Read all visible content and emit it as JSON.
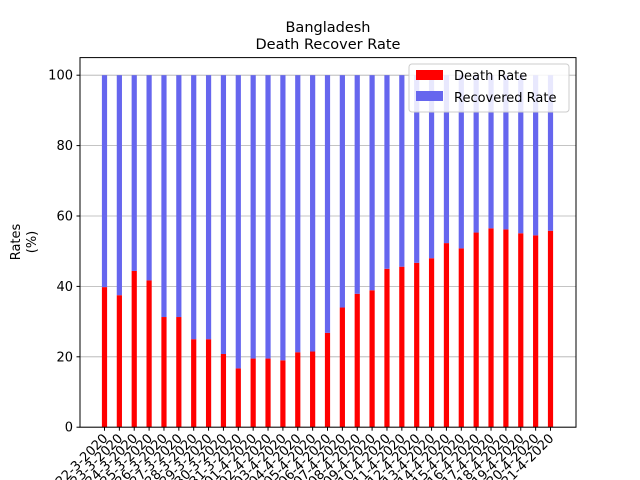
{
  "chart_data": {
    "type": "bar",
    "stacked": true,
    "title": "Bangladesh",
    "subtitle": "Death Recover Rate",
    "xlabel": "",
    "ylabel": "Rates",
    "ylabel_unit": "(%)",
    "ylim": [
      0,
      105
    ],
    "yticks": [
      0,
      20,
      40,
      60,
      80,
      100
    ],
    "grid": "y",
    "legend": "top-right",
    "categories": [
      "22-3-2020",
      "23-3-2020",
      "24-3-2020",
      "25-3-2020",
      "26-3-2020",
      "27-3-2020",
      "28-3-2020",
      "29-3-2020",
      "30-3-2020",
      "31-3-2020",
      "01-4-2020",
      "02-4-2020",
      "03-4-2020",
      "04-4-2020",
      "05-4-2020",
      "06-4-2020",
      "07-4-2020",
      "08-4-2020",
      "09-4-2020",
      "10-4-2020",
      "11-4-2020",
      "12-4-2020",
      "13-4-2020",
      "14-4-2020",
      "15-4-2020",
      "16-4-2020",
      "17-4-2020",
      "18-4-2020",
      "19-4-2020",
      "20-4-2020",
      "21-4-2020"
    ],
    "series": [
      {
        "name": "Death Rate",
        "color": "#ff0000",
        "values": [
          39.8,
          37.5,
          44.4,
          41.7,
          31.3,
          31.3,
          25.0,
          25.0,
          20.8,
          16.7,
          19.5,
          19.5,
          19.0,
          21.3,
          21.5,
          26.8,
          34.0,
          37.9,
          38.9,
          45.0,
          45.6,
          46.7,
          48.0,
          52.3,
          50.8,
          55.3,
          56.5,
          56.2,
          55.1,
          54.5,
          55.8
        ]
      },
      {
        "name": "Recovered Rate",
        "color": "#6666ee",
        "values": [
          60.2,
          62.5,
          55.6,
          58.3,
          68.7,
          68.7,
          75.0,
          75.0,
          79.2,
          83.3,
          80.5,
          80.5,
          81.0,
          78.7,
          78.5,
          73.2,
          66.0,
          62.1,
          61.1,
          55.0,
          54.4,
          53.3,
          52.0,
          47.7,
          49.2,
          44.7,
          43.5,
          43.8,
          44.9,
          45.5,
          44.2
        ]
      }
    ]
  }
}
